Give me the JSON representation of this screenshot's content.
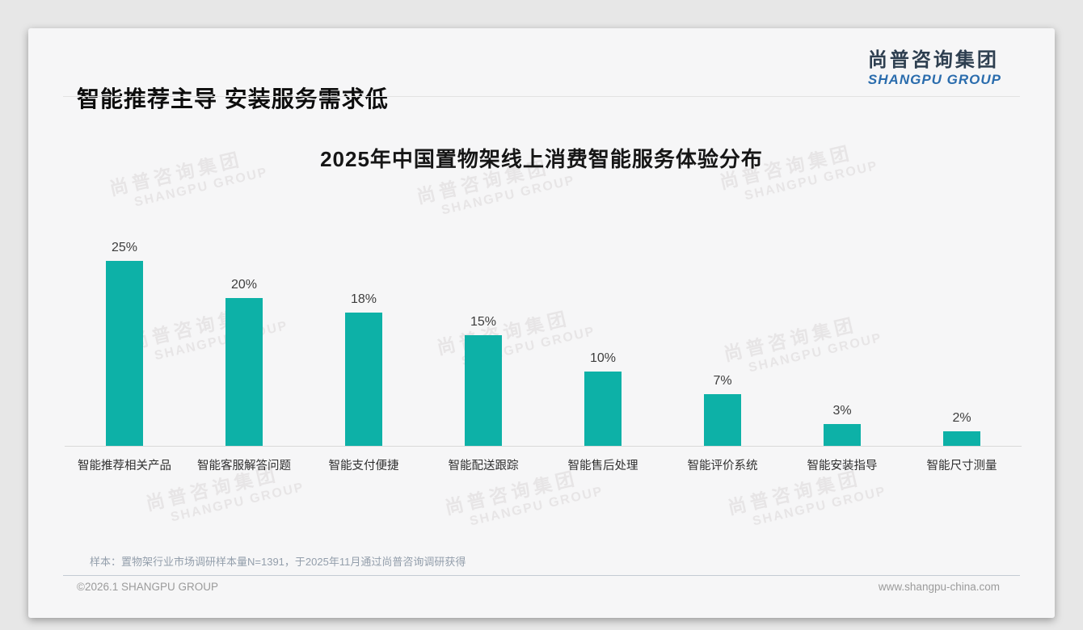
{
  "header": {
    "title": "智能推荐主导 安装服务需求低",
    "logo_cn": "尚普咨询集团",
    "logo_en": "SHANGPU GROUP"
  },
  "watermark": {
    "line1": "尚普咨询集团",
    "line2": "SHANGPU GROUP"
  },
  "chart_data": {
    "type": "bar",
    "title": "2025年中国置物架线上消费智能服务体验分布",
    "categories": [
      "智能推荐相关产品",
      "智能客服解答问题",
      "智能支付便捷",
      "智能配送跟踪",
      "智能售后处理",
      "智能评价系统",
      "智能安装指导",
      "智能尺寸测量"
    ],
    "values": [
      25,
      20,
      18,
      15,
      10,
      7,
      3,
      2
    ],
    "data_labels": [
      "25%",
      "20%",
      "18%",
      "15%",
      "10%",
      "7%",
      "3%",
      "2%"
    ],
    "unit": "%",
    "xlabel": "",
    "ylabel": "",
    "ylim": [
      0,
      27
    ],
    "grid": false,
    "legend_position": "none",
    "bar_color": "#0db1a7"
  },
  "footnote": {
    "sample_note": "样本：置物架行业市场调研样本量N=1391，于2025年11月通过尚普咨询调研获得"
  },
  "footer": {
    "copyright": "©2026.1 SHANGPU GROUP",
    "website": "www.shangpu-china.com"
  },
  "colors": {
    "bar": "#0db1a7",
    "logo_navy": "#2e3f50",
    "logo_blue": "#2a6cad",
    "card_background": "#f6f6f7",
    "page_background": "#e7e7e7"
  }
}
